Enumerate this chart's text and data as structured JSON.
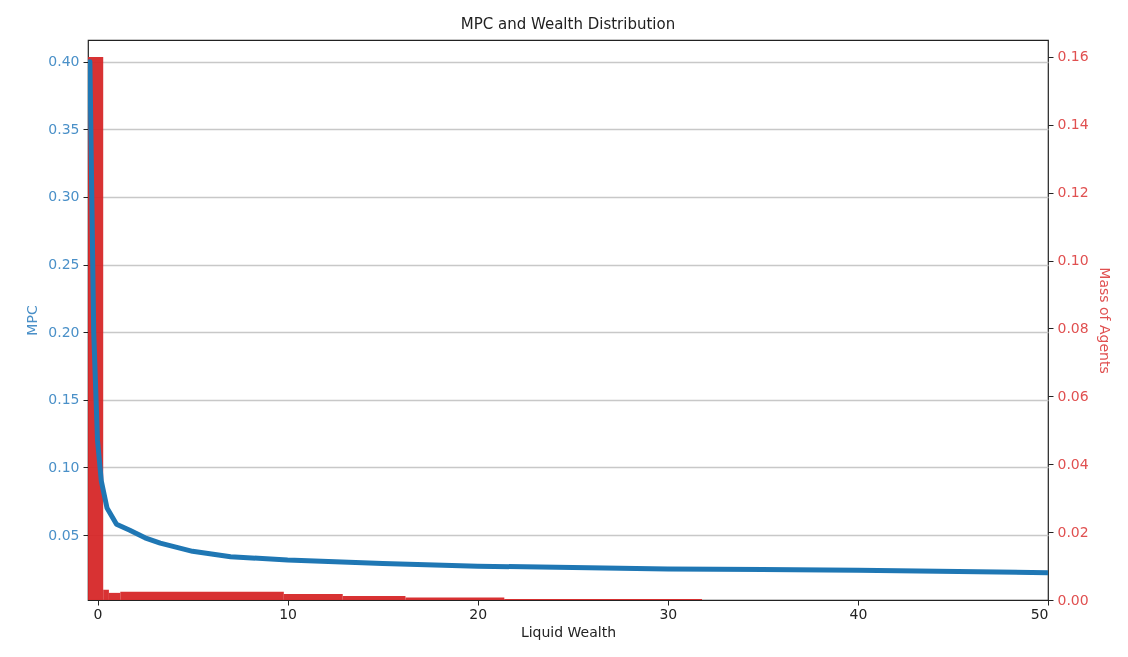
{
  "chart_data": {
    "type": "line",
    "title": "MPC and Wealth Distribution",
    "xlabel": "Liquid Wealth",
    "ylabel": "MPC",
    "y2label": "Mass of Agents",
    "xlim": [
      -0.5,
      50
    ],
    "xticks": [
      0,
      10,
      20,
      30,
      40,
      50
    ],
    "ylim": [
      0.002,
      0.416
    ],
    "yticks": [
      {
        "value": 0.05,
        "label": "0.05"
      },
      {
        "value": 0.1,
        "label": "0.10"
      },
      {
        "value": 0.15,
        "label": "0.15"
      },
      {
        "value": 0.2,
        "label": "0.20"
      },
      {
        "value": 0.25,
        "label": "0.25"
      },
      {
        "value": 0.3,
        "label": "0.30"
      },
      {
        "value": 0.35,
        "label": "0.35"
      },
      {
        "value": 0.4,
        "label": "0.40"
      }
    ],
    "y2lim": [
      0,
      0.165
    ],
    "y2ticks": [
      {
        "value": 0,
        "label": "0.00"
      },
      {
        "value": 0.02,
        "label": "0.02"
      },
      {
        "value": 0.04,
        "label": "0.04"
      },
      {
        "value": 0.06,
        "label": "0.06"
      },
      {
        "value": 0.08,
        "label": "0.08"
      },
      {
        "value": 0.1,
        "label": "0.10"
      },
      {
        "value": 0.12,
        "label": "0.12"
      },
      {
        "value": 0.14,
        "label": "0.14"
      },
      {
        "value": 0.16,
        "label": "0.16"
      }
    ],
    "grid": "y",
    "line_style": "solid",
    "marker": "none",
    "series": [
      {
        "type": "histogram",
        "axis": "y2",
        "color": "#d62728",
        "bins": [
          -0.5,
          0.3,
          0.6,
          1.2,
          9.8,
          12.9,
          16.2,
          21.4,
          31.8
        ],
        "values": [
          0.16,
          0.003,
          0.0021,
          0.0024,
          0.0018,
          0.0012,
          0.0007,
          0.0003
        ]
      },
      {
        "axis": "y",
        "color": "#1f77b4",
        "x": [
          -0.4,
          -0.3,
          -0.2,
          0,
          0.2,
          0.5,
          1,
          1.7,
          2.5,
          3.3,
          5,
          7,
          10,
          15,
          20,
          25,
          30,
          40,
          50
        ],
        "values": [
          0.4,
          0.3,
          0.2,
          0.12,
          0.09,
          0.07,
          0.058,
          0.0535,
          0.048,
          0.044,
          0.038,
          0.034,
          0.0315,
          0.029,
          0.027,
          0.026,
          0.025,
          0.024,
          0.0222
        ]
      }
    ]
  }
}
